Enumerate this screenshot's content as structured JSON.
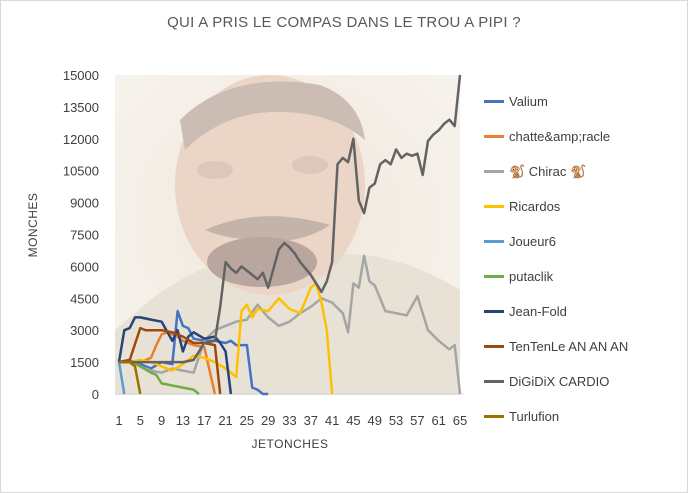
{
  "chart_data": {
    "type": "line",
    "title": "QUI A PRIS LE COMPAS DANS LE TROU A PIPI ?",
    "xlabel": "JETONCHES",
    "ylabel": "MONCHES",
    "xlim": [
      1,
      65
    ],
    "ylim": [
      0,
      15000
    ],
    "y_ticks": [
      "0",
      "1500",
      "3000",
      "4500",
      "6000",
      "7500",
      "9000",
      "10500",
      "12000",
      "13500",
      "15000"
    ],
    "x_ticks": [
      "1",
      "5",
      "9",
      "13",
      "17",
      "21",
      "25",
      "29",
      "33",
      "37",
      "41",
      "45",
      "49",
      "53",
      "57",
      "61",
      "65"
    ],
    "grid": false,
    "legend_position": "right",
    "series": [
      {
        "name": "Valium",
        "color": "#4472c4",
        "x": [
          1,
          3,
          5,
          7,
          9,
          11,
          12,
          13,
          14,
          15,
          17,
          19,
          21,
          22,
          23,
          24,
          25,
          26,
          27,
          28,
          29
        ],
        "y": [
          1500,
          1500,
          1400,
          1200,
          1500,
          1400,
          3900,
          3200,
          3100,
          2600,
          2500,
          2500,
          2400,
          2500,
          2300,
          2300,
          2300,
          300,
          200,
          0,
          0
        ]
      },
      {
        "name": "chatte&amp;racle",
        "color": "#ed7d31",
        "x": [
          1,
          3,
          5,
          7,
          8,
          9,
          10,
          11,
          12,
          13,
          15,
          17,
          19
        ],
        "y": [
          1500,
          1500,
          1500,
          1700,
          2300,
          2800,
          2900,
          2800,
          2700,
          2500,
          2300,
          2200,
          0
        ]
      },
      {
        "name": "🐒 Chirac 🐒",
        "color": "#a5a5a5",
        "x": [
          1,
          3,
          5,
          7,
          9,
          11,
          13,
          15,
          17,
          19,
          21,
          23,
          25,
          27,
          29,
          31,
          33,
          35,
          37,
          39,
          41,
          43,
          44,
          45,
          46,
          47,
          48,
          49,
          51,
          53,
          55,
          57,
          59,
          61,
          63,
          64,
          65
        ],
        "y": [
          1500,
          1600,
          1300,
          1100,
          1000,
          1200,
          1100,
          1000,
          2500,
          3000,
          3200,
          3400,
          3500,
          4200,
          3600,
          3200,
          3400,
          3800,
          4100,
          4500,
          4300,
          3800,
          2900,
          5200,
          5000,
          6500,
          5300,
          5100,
          3900,
          3800,
          3700,
          4600,
          3000,
          2500,
          2100,
          2300,
          0
        ]
      },
      {
        "name": "Ricardos",
        "color": "#ffc000",
        "x": [
          1,
          3,
          5,
          7,
          9,
          11,
          13,
          15,
          17,
          19,
          21,
          23,
          24,
          25,
          26,
          27,
          29,
          31,
          33,
          35,
          37,
          38,
          39,
          40,
          41
        ],
        "y": [
          1500,
          1500,
          1600,
          1500,
          1300,
          1100,
          1400,
          1800,
          1700,
          1500,
          1200,
          800,
          3900,
          4200,
          3600,
          4000,
          3900,
          4500,
          4000,
          3800,
          5000,
          5200,
          4300,
          3000,
          0
        ]
      },
      {
        "name": "Joueur6",
        "color": "#5b9bd5",
        "x": [
          1,
          2
        ],
        "y": [
          1500,
          0
        ]
      },
      {
        "name": "putaclik",
        "color": "#70ad47",
        "x": [
          1,
          3,
          5,
          7,
          8,
          9,
          11,
          13,
          15,
          16
        ],
        "y": [
          1500,
          1600,
          1300,
          1000,
          900,
          500,
          400,
          300,
          200,
          0
        ]
      },
      {
        "name": "Jean-Fold",
        "color": "#264478",
        "x": [
          1,
          2,
          3,
          4,
          5,
          7,
          9,
          11,
          12,
          13,
          14,
          15,
          17,
          19,
          20,
          21,
          22
        ],
        "y": [
          1500,
          3000,
          3100,
          3600,
          3600,
          3500,
          3400,
          2500,
          3000,
          2000,
          2700,
          2900,
          2600,
          2700,
          2400,
          2000,
          0
        ]
      },
      {
        "name": "TenTenLe AN AN AN",
        "color": "#9e480e",
        "x": [
          1,
          3,
          5,
          6,
          7,
          9,
          11,
          13,
          15,
          17,
          19,
          20
        ],
        "y": [
          1500,
          1600,
          3100,
          3000,
          3000,
          3000,
          2900,
          2700,
          2400,
          2400,
          2300,
          0
        ]
      },
      {
        "name": "DiGiDiX CARDIO",
        "color": "#636363",
        "x": [
          1,
          5,
          9,
          13,
          15,
          17,
          19,
          20,
          21,
          22,
          23,
          24,
          25,
          26,
          27,
          28,
          29,
          31,
          32,
          33,
          34,
          35,
          37,
          39,
          40,
          41,
          42,
          43,
          44,
          45,
          46,
          47,
          48,
          49,
          50,
          51,
          52,
          53,
          54,
          55,
          56,
          57,
          58,
          59,
          60,
          61,
          62,
          63,
          64,
          65
        ],
        "y": [
          1500,
          1500,
          1500,
          1500,
          1600,
          2400,
          2500,
          4100,
          6200,
          5900,
          5700,
          6000,
          5800,
          5600,
          5400,
          5700,
          5000,
          6800,
          7100,
          6900,
          6600,
          6200,
          5600,
          4800,
          5300,
          6200,
          10800,
          11100,
          10900,
          12000,
          9100,
          8500,
          9700,
          9900,
          10800,
          11000,
          10800,
          11500,
          11100,
          11300,
          11200,
          11300,
          10300,
          11900,
          12200,
          12400,
          12700,
          12900,
          12600,
          15000
        ]
      },
      {
        "name": "Turlufion",
        "color": "#997300",
        "x": [
          1,
          3,
          4,
          5
        ],
        "y": [
          1500,
          1500,
          1300,
          0
        ]
      }
    ]
  }
}
